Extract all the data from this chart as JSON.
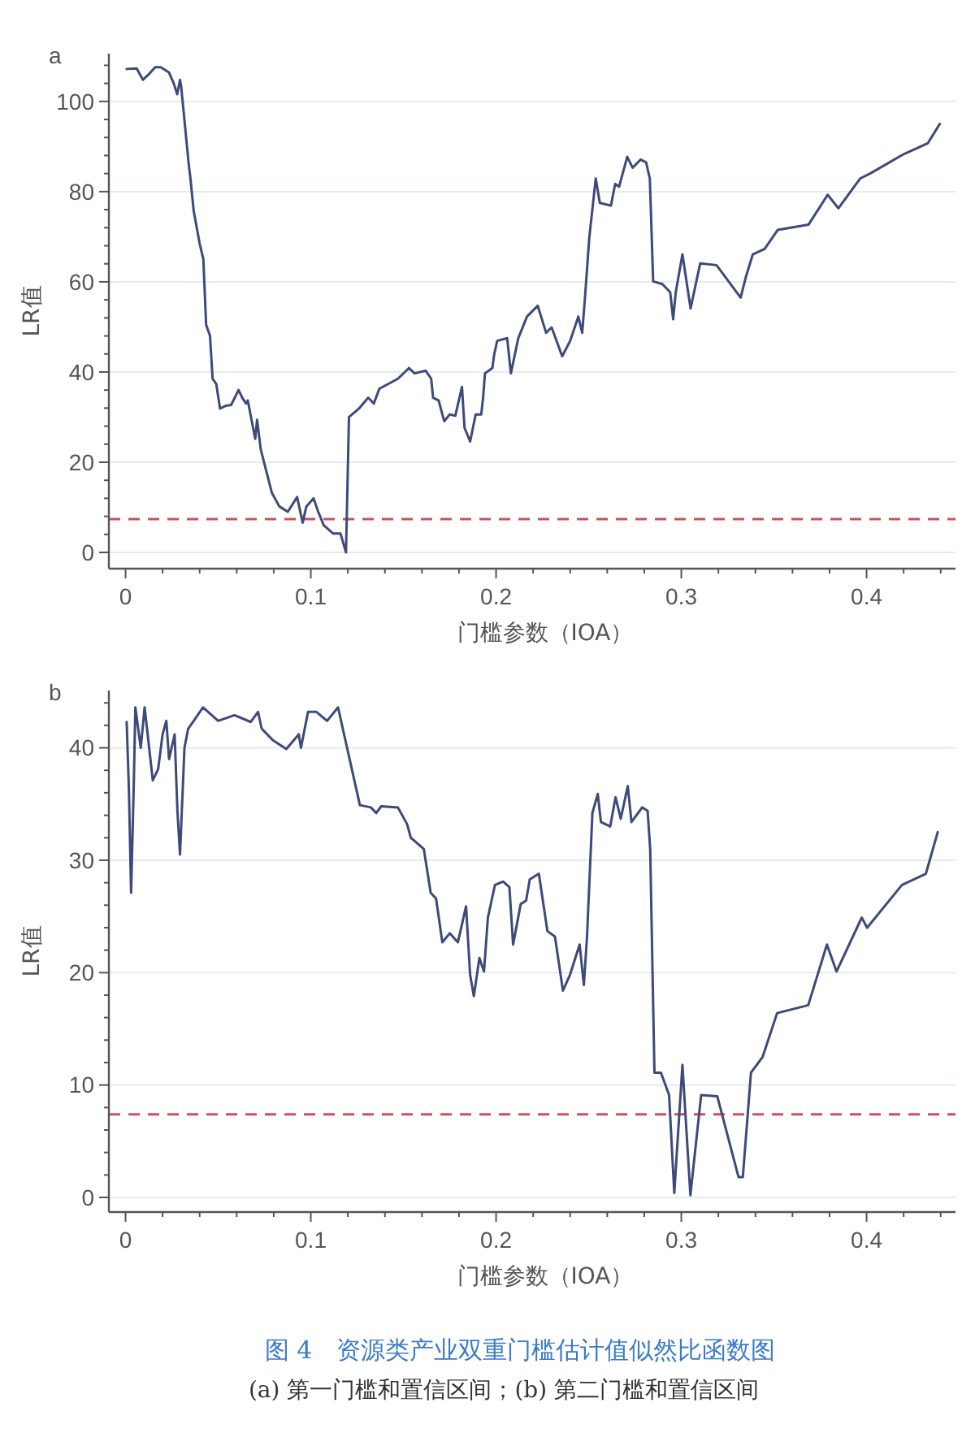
{
  "chart_data": [
    {
      "type": "line",
      "title": "a",
      "xlabel": "门槛参数（IOA）",
      "ylabel": "LR值",
      "xlim": [
        -0.009,
        0.448
      ],
      "ylim": [
        -3.6,
        110.6
      ],
      "xticks": [
        0,
        {
          "value": 0.02,
          "label": null
        },
        {
          "value": 0.04,
          "label": null
        },
        {
          "value": 0.06,
          "label": null
        },
        {
          "value": 0.08,
          "label": null
        },
        0.1,
        {
          "value": 0.12,
          "label": null
        },
        {
          "value": 0.14,
          "label": null
        },
        {
          "value": 0.16,
          "label": null
        },
        {
          "value": 0.18,
          "label": null
        },
        0.2,
        {
          "value": 0.22,
          "label": null
        },
        {
          "value": 0.24,
          "label": null
        },
        {
          "value": 0.26,
          "label": null
        },
        {
          "value": 0.28,
          "label": null
        },
        0.3,
        {
          "value": 0.32,
          "label": null
        },
        {
          "value": 0.34,
          "label": null
        },
        {
          "value": 0.36,
          "label": null
        },
        {
          "value": 0.38,
          "label": null
        },
        0.4,
        {
          "value": 0.42,
          "label": null
        },
        {
          "value": 0.44,
          "label": null
        }
      ],
      "yticks": [
        0,
        {
          "value": 4,
          "label": null
        },
        {
          "value": 8,
          "label": null
        },
        {
          "value": 12,
          "label": null
        },
        {
          "value": 16,
          "label": null
        },
        20,
        {
          "value": 24,
          "label": null
        },
        {
          "value": 28,
          "label": null
        },
        {
          "value": 32,
          "label": null
        },
        {
          "value": 36,
          "label": null
        },
        40,
        {
          "value": 44,
          "label": null
        },
        {
          "value": 48,
          "label": null
        },
        {
          "value": 52,
          "label": null
        },
        {
          "value": 56,
          "label": null
        },
        60,
        {
          "value": 64,
          "label": null
        },
        {
          "value": 68,
          "label": null
        },
        {
          "value": 72,
          "label": null
        },
        {
          "value": 76,
          "label": null
        },
        80,
        {
          "value": 84,
          "label": null
        },
        {
          "value": 88,
          "label": null
        },
        {
          "value": 92,
          "label": null
        },
        {
          "value": 96,
          "label": null
        },
        100,
        {
          "value": 104,
          "label": null
        },
        {
          "value": 108,
          "label": null
        }
      ],
      "grid": "y",
      "line_style": "solid",
      "marker": "none",
      "ref_lines": [
        {
          "axis": "y",
          "value": 7.4,
          "color": "#d0505a",
          "line_style": "dashed"
        }
      ],
      "series": [
        {
          "color": "#3d4a7a",
          "x": [
            0.0006,
            0.006,
            0.0094,
            0.012,
            0.016,
            0.019,
            0.0235,
            0.026,
            0.0279,
            0.0294,
            0.03,
            0.032,
            0.034,
            0.035,
            0.0368,
            0.04,
            0.042,
            0.0435,
            0.0456,
            0.047,
            0.049,
            0.051,
            0.054,
            0.057,
            0.061,
            0.063,
            0.065,
            0.066,
            0.068,
            0.07,
            0.071,
            0.073,
            0.076,
            0.079,
            0.083,
            0.0876,
            0.0926,
            0.0956,
            0.0976,
            0.1015,
            0.104,
            0.107,
            0.112,
            0.116,
            0.119,
            0.1206,
            0.126,
            0.131,
            0.134,
            0.137,
            0.147,
            0.153,
            0.156,
            0.162,
            0.165,
            0.166,
            0.169,
            0.172,
            0.175,
            0.178,
            0.1816,
            0.183,
            0.186,
            0.189,
            0.192,
            0.193,
            0.194,
            0.198,
            0.199,
            0.2006,
            0.206,
            0.208,
            0.212,
            0.2167,
            0.2225,
            0.227,
            0.23,
            0.2357,
            0.24,
            0.2444,
            0.2465,
            0.248,
            0.2503,
            0.2538,
            0.256,
            0.262,
            0.2643,
            0.2664,
            0.2684,
            0.2708,
            0.2737,
            0.278,
            0.281,
            0.283,
            0.2848,
            0.2898,
            0.294,
            0.2956,
            0.297,
            0.3006,
            0.305,
            0.3102,
            0.319,
            0.332,
            0.335,
            0.3386,
            0.345,
            0.352,
            0.3687,
            0.379,
            0.3848,
            0.3965,
            0.4023,
            0.42,
            0.433,
            0.4395
          ],
          "values": [
            107.2,
            107.3,
            104.8,
            105.8,
            107.6,
            107.6,
            106.4,
            104,
            101.6,
            104.8,
            103.4,
            95,
            86.5,
            83,
            75.7,
            68.5,
            65,
            50.5,
            48,
            38.5,
            37.3,
            31.9,
            32.5,
            32.7,
            36,
            34.3,
            33,
            33.7,
            29.4,
            25.2,
            29.4,
            22.8,
            18,
            13.2,
            10.2,
            9,
            12.3,
            6.6,
            10.2,
            12,
            9,
            6,
            4.2,
            4.2,
            0,
            30,
            31.9,
            34.3,
            33,
            36.3,
            38.5,
            40.9,
            39.7,
            40.3,
            38.5,
            34.3,
            33.7,
            29.1,
            30.6,
            30.3,
            36.7,
            27.6,
            24.6,
            30.6,
            30.6,
            34.3,
            39.7,
            40.9,
            43.9,
            46.9,
            47.5,
            39.7,
            47.5,
            52.3,
            54.7,
            48.7,
            49.9,
            43.5,
            46.9,
            52.3,
            48.7,
            56.5,
            69.7,
            82.9,
            77.5,
            76.9,
            81.7,
            81.1,
            84.1,
            87.7,
            85.3,
            87.1,
            86.5,
            82.9,
            60.1,
            59.5,
            57.7,
            51.7,
            57.7,
            66.1,
            54.1,
            64.1,
            63.7,
            56.5,
            61.3,
            66.1,
            67.3,
            71.5,
            72.7,
            79.3,
            76.3,
            82.9,
            84.1,
            88.3,
            90.7,
            95
          ]
        }
      ]
    },
    {
      "type": "line",
      "title": "b",
      "xlabel": "门槛参数（IOA）",
      "ylabel": "LR值",
      "xlim": [
        -0.009,
        0.448
      ],
      "ylim": [
        -1.3,
        45.1
      ],
      "xticks": [
        0,
        {
          "value": 0.02,
          "label": null
        },
        {
          "value": 0.04,
          "label": null
        },
        {
          "value": 0.06,
          "label": null
        },
        {
          "value": 0.08,
          "label": null
        },
        0.1,
        {
          "value": 0.12,
          "label": null
        },
        {
          "value": 0.14,
          "label": null
        },
        {
          "value": 0.16,
          "label": null
        },
        {
          "value": 0.18,
          "label": null
        },
        0.2,
        {
          "value": 0.22,
          "label": null
        },
        {
          "value": 0.24,
          "label": null
        },
        {
          "value": 0.26,
          "label": null
        },
        {
          "value": 0.28,
          "label": null
        },
        0.3,
        {
          "value": 0.32,
          "label": null
        },
        {
          "value": 0.34,
          "label": null
        },
        {
          "value": 0.36,
          "label": null
        },
        {
          "value": 0.38,
          "label": null
        },
        0.4,
        {
          "value": 0.42,
          "label": null
        },
        {
          "value": 0.44,
          "label": null
        }
      ],
      "yticks": [
        0,
        {
          "value": 2,
          "label": null
        },
        {
          "value": 4,
          "label": null
        },
        {
          "value": 6,
          "label": null
        },
        {
          "value": 8,
          "label": null
        },
        10,
        {
          "value": 12,
          "label": null
        },
        {
          "value": 14,
          "label": null
        },
        {
          "value": 16,
          "label": null
        },
        {
          "value": 18,
          "label": null
        },
        20,
        {
          "value": 22,
          "label": null
        },
        {
          "value": 24,
          "label": null
        },
        {
          "value": 26,
          "label": null
        },
        {
          "value": 28,
          "label": null
        },
        30,
        {
          "value": 32,
          "label": null
        },
        {
          "value": 34,
          "label": null
        },
        {
          "value": 36,
          "label": null
        },
        {
          "value": 38,
          "label": null
        },
        40,
        {
          "value": 42,
          "label": null
        },
        {
          "value": 44,
          "label": null
        }
      ],
      "grid": "y",
      "line_style": "solid",
      "marker": "none",
      "ref_lines": [
        {
          "axis": "y",
          "value": 7.4,
          "color": "#d0505a",
          "line_style": "dashed"
        }
      ],
      "annotations": [
        "图 4　资源类产业双重门槛估计值似然比函数图",
        "(a) 第一门槛和置信区间；(b) 第二门槛和置信区间"
      ],
      "series": [
        {
          "color": "#3d4a7a",
          "x": [
            0.0006,
            0.0018,
            0.003,
            0.0044,
            0.0053,
            0.0082,
            0.0103,
            0.0147,
            0.0176,
            0.02,
            0.022,
            0.0235,
            0.0265,
            0.028,
            0.0294,
            0.0318,
            0.0338,
            0.0368,
            0.0418,
            0.05,
            0.0588,
            0.0676,
            0.0715,
            0.0735,
            0.0794,
            0.0868,
            0.0935,
            0.0947,
            0.0985,
            0.103,
            0.1088,
            0.1147,
            0.1265,
            0.1324,
            0.1353,
            0.138,
            0.147,
            0.152,
            0.154,
            0.161,
            0.1647,
            0.1676,
            0.171,
            0.175,
            0.1794,
            0.1838,
            0.186,
            0.188,
            0.191,
            0.1935,
            0.1956,
            0.1994,
            0.2038,
            0.2072,
            0.2092,
            0.2133,
            0.2162,
            0.2182,
            0.2231,
            0.2277,
            0.2318,
            0.2361,
            0.2399,
            0.2451,
            0.2474,
            0.2491,
            0.252,
            0.2549,
            0.2566,
            0.2616,
            0.2645,
            0.2673,
            0.2711,
            0.2731,
            0.2789,
            0.2818,
            0.2832,
            0.2855,
            0.289,
            0.2934,
            0.2962,
            0.3006,
            0.3049,
            0.3107,
            0.3194,
            0.3309,
            0.3332,
            0.3376,
            0.3439,
            0.3517,
            0.3685,
            0.3786,
            0.3838,
            0.3974,
            0.4003,
            0.4191,
            0.432,
            0.4384
          ],
          "values": [
            42.3,
            36.4,
            27.1,
            36.4,
            43.6,
            40,
            43.6,
            37.1,
            38.1,
            41.2,
            42.4,
            39,
            41.2,
            34.4,
            30.5,
            40,
            41.7,
            42.4,
            43.6,
            42.4,
            42.9,
            42.3,
            43.2,
            41.7,
            40.7,
            39.9,
            41.2,
            40,
            43.2,
            43.2,
            42.4,
            43.6,
            34.9,
            34.7,
            34.2,
            34.8,
            34.7,
            33.2,
            32,
            31,
            27.1,
            26.6,
            22.7,
            23.5,
            22.7,
            25.9,
            19.8,
            17.9,
            21.3,
            20.1,
            24.9,
            27.8,
            28.1,
            27.6,
            22.5,
            26.1,
            26.4,
            28.3,
            28.8,
            23.7,
            23.2,
            18.4,
            19.8,
            22.5,
            18.9,
            23.2,
            34.2,
            35.9,
            33.4,
            33,
            35.6,
            33.7,
            36.6,
            33.4,
            34.7,
            34.4,
            31,
            11.1,
            11.1,
            9.1,
            0.4,
            11.8,
            0.2,
            9.1,
            9,
            1.8,
            1.8,
            11.1,
            12.5,
            16.4,
            17.1,
            22.5,
            20.1,
            24.9,
            24,
            27.8,
            28.8,
            32.5
          ]
        }
      ]
    }
  ]
}
